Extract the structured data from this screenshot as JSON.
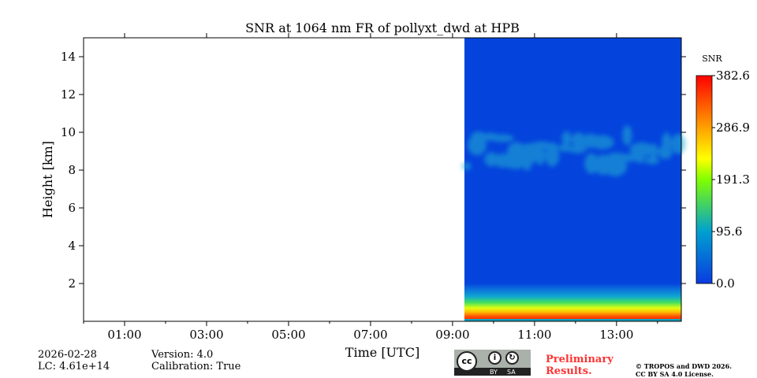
{
  "chart_data": {
    "type": "heatmap",
    "title": "SNR at 1064 nm FR of pollyxt_dwd at HPB",
    "xlabel": "Time [UTC]",
    "ylabel": "Height [km]",
    "xlim_hours": [
      0,
      14.58
    ],
    "ylim_km": [
      0,
      15
    ],
    "x_ticks": [
      {
        "h": 1,
        "label": "01:00"
      },
      {
        "h": 3,
        "label": "03:00"
      },
      {
        "h": 5,
        "label": "05:00"
      },
      {
        "h": 7,
        "label": "07:00"
      },
      {
        "h": 9,
        "label": "09:00"
      },
      {
        "h": 11,
        "label": "11:00"
      },
      {
        "h": 13,
        "label": "13:00"
      }
    ],
    "y_ticks": [
      {
        "v": 2,
        "label": "2"
      },
      {
        "v": 4,
        "label": "4"
      },
      {
        "v": 6,
        "label": "6"
      },
      {
        "v": 8,
        "label": "8"
      },
      {
        "v": 10,
        "label": "10"
      },
      {
        "v": 12,
        "label": "12"
      },
      {
        "v": 14,
        "label": "14"
      }
    ],
    "data_start_hour": 9.29,
    "data_end_hour": 14.58,
    "features": {
      "boundary_layer_top_km": 1.5,
      "high_snr_layer_km": [
        0,
        0.8
      ],
      "cloud_layer_km": [
        8.2,
        10
      ]
    },
    "colorbar": {
      "label": "SNR",
      "min": 0.0,
      "max": 382.6,
      "ticks": [
        "0.0",
        "95.6",
        "191.3",
        "286.9",
        "382.6"
      ],
      "tick_values": [
        0,
        95.6,
        191.3,
        286.9,
        382.6
      ]
    }
  },
  "footer": {
    "date": "2026-02-28",
    "lc": "LC: 4.61e+14",
    "version": "Version: 4.0",
    "calibration": "Calibration: True",
    "preliminary": "Preliminary Results.",
    "copyright1": "© TROPOS and DWD 2026.",
    "copyright2": "CC BY SA 4.0 License.",
    "cc_by": "BY",
    "cc_sa": "SA"
  },
  "colors": {
    "low": "#0444dc",
    "accent": "#ff3333"
  }
}
